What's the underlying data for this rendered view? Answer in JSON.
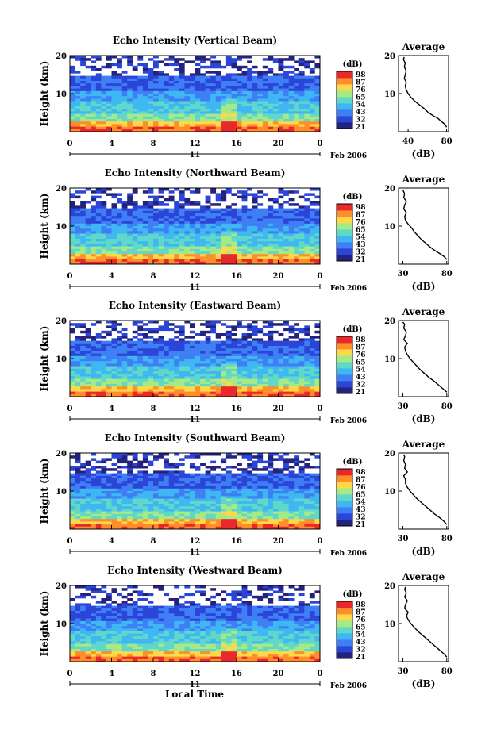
{
  "chart_data": [
    {
      "type": "heatmap",
      "title": "Echo Intensity (Vertical Beam)",
      "ylabel": "Height (km)",
      "x_ticks": [
        "0",
        "4",
        "8",
        "12",
        "16",
        "20",
        "0"
      ],
      "xlim": [
        0,
        24
      ],
      "ylim": [
        0,
        20
      ],
      "y_ticks": [
        "20",
        "10"
      ],
      "day_label": "11",
      "date_label": "Feb 2006",
      "colorbar": {
        "title": "(dB)",
        "levels": [
          "98",
          "87",
          "76",
          "65",
          "54",
          "43",
          "32",
          "21"
        ]
      },
      "average_profile": {
        "title": "Average",
        "xlabel": "(dB)",
        "x_ticks": [
          "40",
          "80"
        ],
        "xlim": [
          30,
          82
        ],
        "y_ticks": [
          "20",
          "10"
        ],
        "ylim": [
          0,
          20
        ],
        "points": [
          [
            80,
            1.2
          ],
          [
            78,
            2
          ],
          [
            74,
            2.8
          ],
          [
            71,
            3.5
          ],
          [
            66,
            4.2
          ],
          [
            61,
            5
          ],
          [
            57,
            6
          ],
          [
            52,
            7
          ],
          [
            47,
            8
          ],
          [
            43,
            9
          ],
          [
            40,
            10
          ],
          [
            38,
            11
          ],
          [
            37,
            12
          ],
          [
            38,
            13
          ],
          [
            36,
            14
          ],
          [
            37,
            15
          ],
          [
            38,
            16
          ],
          [
            36,
            17
          ],
          [
            37,
            18
          ],
          [
            35,
            19
          ],
          [
            36,
            19.6
          ]
        ]
      }
    },
    {
      "type": "heatmap",
      "title": "Echo Intensity (Northward Beam)",
      "ylabel": "Height (km)",
      "x_ticks": [
        "0",
        "4",
        "8",
        "12",
        "16",
        "20",
        "0"
      ],
      "xlim": [
        0,
        24
      ],
      "ylim": [
        0,
        20
      ],
      "y_ticks": [
        "20",
        "10"
      ],
      "day_label": "11",
      "date_label": "Feb 2006",
      "colorbar": {
        "title": "(dB)",
        "levels": [
          "98",
          "87",
          "76",
          "65",
          "54",
          "43",
          "32",
          "21"
        ]
      },
      "average_profile": {
        "title": "Average",
        "xlabel": "(dB)",
        "x_ticks": [
          "30",
          "80"
        ],
        "xlim": [
          25,
          82
        ],
        "y_ticks": [
          "20",
          "10"
        ],
        "ylim": [
          0,
          20
        ],
        "points": [
          [
            80,
            1.2
          ],
          [
            77,
            2
          ],
          [
            72,
            2.8
          ],
          [
            67,
            3.5
          ],
          [
            61,
            4.5
          ],
          [
            56,
            5.5
          ],
          [
            51,
            6.5
          ],
          [
            47,
            7.5
          ],
          [
            43,
            8.5
          ],
          [
            40,
            9.5
          ],
          [
            36,
            10.5
          ],
          [
            33,
            11.5
          ],
          [
            32,
            12.5
          ],
          [
            34,
            13.5
          ],
          [
            31,
            14.5
          ],
          [
            32,
            15.5
          ],
          [
            34,
            16.5
          ],
          [
            31,
            17.5
          ],
          [
            32,
            18.5
          ],
          [
            30,
            19.5
          ]
        ]
      }
    },
    {
      "type": "heatmap",
      "title": "Echo Intensity (Eastward Beam)",
      "ylabel": "Height (km)",
      "x_ticks": [
        "0",
        "4",
        "8",
        "12",
        "16",
        "20",
        "0"
      ],
      "xlim": [
        0,
        24
      ],
      "ylim": [
        0,
        20
      ],
      "y_ticks": [
        "20",
        "10"
      ],
      "day_label": "11",
      "date_label": "Feb 2006",
      "colorbar": {
        "title": "(dB)",
        "levels": [
          "98",
          "87",
          "76",
          "65",
          "54",
          "43",
          "32",
          "21"
        ]
      },
      "average_profile": {
        "title": "Average",
        "xlabel": "(dB)",
        "x_ticks": [
          "30",
          "80"
        ],
        "xlim": [
          25,
          82
        ],
        "y_ticks": [
          "20",
          "10"
        ],
        "ylim": [
          0,
          20
        ],
        "points": [
          [
            80,
            1.2
          ],
          [
            76,
            2
          ],
          [
            71,
            3
          ],
          [
            66,
            4
          ],
          [
            60,
            5
          ],
          [
            55,
            6
          ],
          [
            50,
            7
          ],
          [
            46,
            8
          ],
          [
            42,
            9
          ],
          [
            38,
            10
          ],
          [
            35,
            11
          ],
          [
            33,
            12
          ],
          [
            32,
            13
          ],
          [
            35,
            14
          ],
          [
            31,
            15
          ],
          [
            33,
            16
          ],
          [
            34,
            17
          ],
          [
            31,
            18
          ],
          [
            32,
            19
          ],
          [
            30,
            19.6
          ]
        ]
      }
    },
    {
      "type": "heatmap",
      "title": "Echo Intensity (Southward Beam)",
      "ylabel": "Height (km)",
      "x_ticks": [
        "0",
        "4",
        "8",
        "12",
        "16",
        "20",
        "0"
      ],
      "xlim": [
        0,
        24
      ],
      "ylim": [
        0,
        20
      ],
      "y_ticks": [
        "20",
        "10"
      ],
      "day_label": "11",
      "date_label": "Feb 2006",
      "colorbar": {
        "title": "(dB)",
        "levels": [
          "98",
          "87",
          "76",
          "65",
          "54",
          "43",
          "32",
          "21"
        ]
      },
      "average_profile": {
        "title": "Average",
        "xlabel": "(dB)",
        "x_ticks": [
          "30",
          "80"
        ],
        "xlim": [
          25,
          82
        ],
        "y_ticks": [
          "20",
          "10"
        ],
        "ylim": [
          0,
          20
        ],
        "points": [
          [
            80,
            1.2
          ],
          [
            77,
            2
          ],
          [
            72,
            3
          ],
          [
            66,
            4
          ],
          [
            61,
            5
          ],
          [
            56,
            6
          ],
          [
            51,
            7
          ],
          [
            46,
            8
          ],
          [
            42,
            9
          ],
          [
            38,
            10
          ],
          [
            35,
            11
          ],
          [
            33,
            12
          ],
          [
            33,
            13
          ],
          [
            31,
            14
          ],
          [
            35,
            15
          ],
          [
            32,
            16
          ],
          [
            33,
            17
          ],
          [
            31,
            18
          ],
          [
            32,
            19
          ],
          [
            31,
            19.6
          ]
        ]
      }
    },
    {
      "type": "heatmap",
      "title": "Echo Intensity (Westward Beam)",
      "ylabel": "Height (km)",
      "x_ticks": [
        "0",
        "4",
        "8",
        "12",
        "16",
        "20",
        "0"
      ],
      "xlim": [
        0,
        24
      ],
      "ylim": [
        0,
        20
      ],
      "y_ticks": [
        "20",
        "10"
      ],
      "day_label": "11",
      "date_label": "Feb 2006",
      "colorbar": {
        "title": "(dB)",
        "levels": [
          "98",
          "87",
          "76",
          "65",
          "54",
          "43",
          "32",
          "21"
        ]
      },
      "average_profile": {
        "title": "Average",
        "xlabel": "(dB)",
        "x_ticks": [
          "30",
          "80"
        ],
        "xlim": [
          25,
          82
        ],
        "y_ticks": [
          "20",
          "10"
        ],
        "ylim": [
          0,
          20
        ],
        "points": [
          [
            80,
            1.2
          ],
          [
            77,
            2
          ],
          [
            72,
            3
          ],
          [
            67,
            4
          ],
          [
            62,
            5
          ],
          [
            57,
            6
          ],
          [
            52,
            7
          ],
          [
            47,
            8
          ],
          [
            43,
            9
          ],
          [
            39,
            10
          ],
          [
            36,
            11
          ],
          [
            34,
            12
          ],
          [
            36,
            13
          ],
          [
            32,
            14
          ],
          [
            33,
            15
          ],
          [
            35,
            16
          ],
          [
            32,
            17
          ],
          [
            34,
            18
          ],
          [
            32,
            19
          ],
          [
            33,
            19.6
          ]
        ]
      }
    }
  ],
  "x_axis_label": "Local Time",
  "colors": {
    "scale": [
      "#23237e",
      "#2a45d8",
      "#3f7ff5",
      "#3fb7f2",
      "#5fd8c9",
      "#a6ea86",
      "#ffd84a",
      "#ff8e2a",
      "#e8282a"
    ],
    "axis": "#000000",
    "background": "#ffffff"
  }
}
